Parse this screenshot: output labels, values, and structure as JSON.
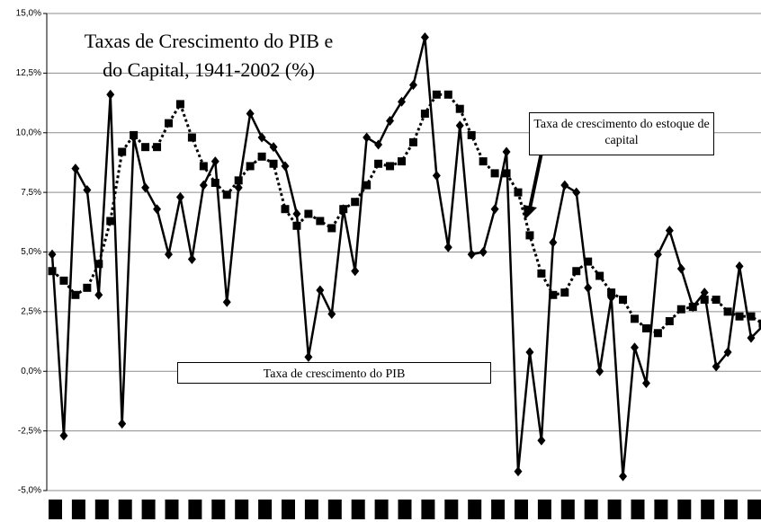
{
  "chart_data": {
    "type": "line",
    "title": [
      "Taxas de Crescimento do PIB e",
      "do Capital, 1941-2002 (%)"
    ],
    "categories": [
      null,
      null,
      null,
      null,
      null,
      null,
      null,
      null,
      null,
      null,
      null,
      null,
      null,
      null,
      null,
      null,
      null,
      null,
      null,
      null,
      null,
      null,
      null,
      null,
      null,
      null,
      null,
      null,
      null,
      null,
      null,
      null,
      null,
      null,
      null,
      null,
      null,
      null,
      null,
      null,
      null,
      null,
      null,
      null,
      null,
      null,
      null,
      null,
      null,
      null,
      null,
      null,
      null,
      null,
      null,
      null,
      null,
      null,
      null,
      null,
      null,
      null
    ],
    "series": [
      {
        "name": "Taxa de crescimento do PIB",
        "color": "#000000",
        "line": "solid",
        "marker": "diamond",
        "values": [
          4.9,
          -2.7,
          8.5,
          7.6,
          3.2,
          11.6,
          -2.2,
          9.8,
          7.7,
          6.8,
          4.9,
          7.3,
          4.7,
          7.8,
          8.8,
          2.9,
          7.7,
          10.8,
          9.8,
          9.4,
          8.6,
          6.6,
          0.6,
          3.4,
          2.4,
          6.8,
          4.2,
          9.8,
          9.5,
          10.5,
          11.3,
          12.0,
          14.0,
          8.2,
          5.2,
          10.3,
          4.9,
          5.0,
          6.8,
          9.2,
          -4.2,
          0.8,
          -2.9,
          5.4,
          7.8,
          7.5,
          3.5,
          0.0,
          3.1,
          -4.4,
          1.0,
          -0.5,
          4.9,
          5.9,
          4.3,
          2.7,
          3.3,
          0.2,
          0.8,
          4.4,
          1.4,
          1.9
        ]
      },
      {
        "name": "Taxa de crescimento do estoque de capital",
        "color": "#000000",
        "line": "dotted",
        "marker": "square",
        "values": [
          4.2,
          3.8,
          3.2,
          3.5,
          4.5,
          6.3,
          9.2,
          9.9,
          9.4,
          9.4,
          10.4,
          11.2,
          9.8,
          8.6,
          7.9,
          7.4,
          8.0,
          8.6,
          9.0,
          8.7,
          6.8,
          6.1,
          6.6,
          6.3,
          6.0,
          6.8,
          7.1,
          7.8,
          8.7,
          8.6,
          8.8,
          9.6,
          10.8,
          11.6,
          11.6,
          11.0,
          9.9,
          8.8,
          8.3,
          8.3,
          7.5,
          5.7,
          4.1,
          3.2,
          3.3,
          4.2,
          4.6,
          4.0,
          3.3,
          3.0,
          2.2,
          1.8,
          1.6,
          2.1,
          2.6,
          2.7,
          3.0,
          3.0,
          2.5,
          2.3,
          2.3,
          2.0
        ]
      }
    ],
    "ylim": [
      -5,
      15
    ],
    "yticks": [
      {
        "value": -5,
        "label": "-5,0%"
      },
      {
        "value": -2.5,
        "label": "-2,5%"
      },
      {
        "value": 0,
        "label": "0,0%"
      },
      {
        "value": 2.5,
        "label": "2,5%"
      },
      {
        "value": 5,
        "label": "5,0%"
      },
      {
        "value": 7.5,
        "label": "7,5%"
      },
      {
        "value": 10,
        "label": "10,0%"
      },
      {
        "value": 12.5,
        "label": "12,5%"
      },
      {
        "value": 15,
        "label": "15,0%"
      }
    ],
    "grid": true
  }
}
